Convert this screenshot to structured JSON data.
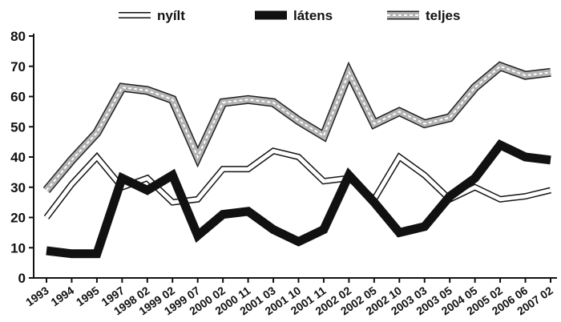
{
  "chart_data": {
    "type": "line",
    "categories": [
      "1993",
      "1994",
      "1995",
      "1997",
      "1998 02",
      "1999 02",
      "1999 07",
      "2000 02",
      "2000 11",
      "2001 03",
      "2001 10",
      "2001 11",
      "2002 02",
      "2002 05",
      "2002 10",
      "2003 03",
      "2003 05",
      "2004 05",
      "2005 02",
      "2006 06",
      "2007 02"
    ],
    "series": [
      {
        "name": "nyílt",
        "style": "hollow",
        "values": [
          20,
          31,
          40,
          30,
          33,
          25,
          26,
          36,
          36,
          42,
          40,
          32,
          33,
          26,
          40,
          34,
          26,
          30,
          26,
          27,
          29
        ]
      },
      {
        "name": "látens",
        "style": "solid",
        "values": [
          9,
          8,
          8,
          33,
          29,
          34,
          14,
          21,
          22,
          16,
          12,
          16,
          34,
          25,
          15,
          17,
          27,
          33,
          44,
          40,
          39
        ]
      },
      {
        "name": "teljes",
        "style": "dashed",
        "values": [
          29,
          39,
          48,
          63,
          62,
          59,
          40,
          58,
          59,
          58,
          52,
          47,
          68,
          51,
          55,
          51,
          53,
          63,
          70,
          67,
          68
        ]
      }
    ],
    "ylim": [
      0,
      80
    ],
    "yticks": [
      0,
      10,
      20,
      30,
      40,
      50,
      60,
      70,
      80
    ],
    "legend_position": "top",
    "grid": false
  }
}
